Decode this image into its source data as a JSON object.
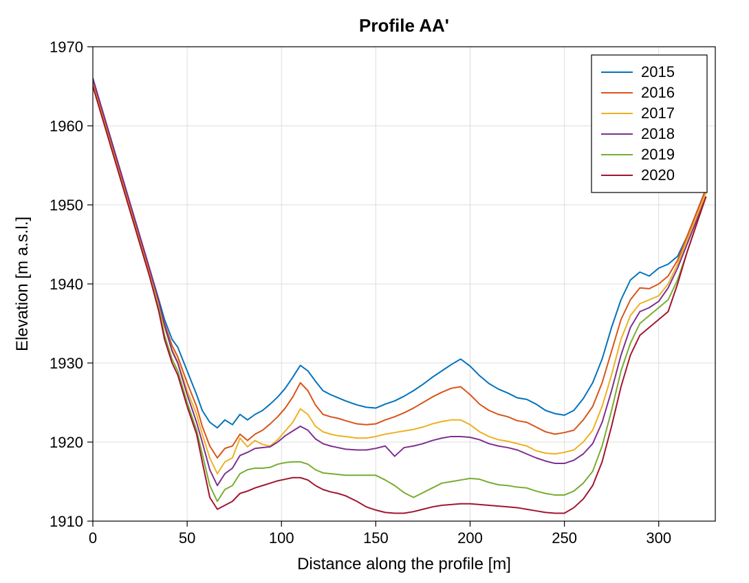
{
  "chart": {
    "type": "line",
    "title": "Profile AA'",
    "title_fontsize": 26,
    "xlabel": "Distance along the profile [m]",
    "ylabel": "Elevation [m a.s.l.]",
    "label_fontsize": 24,
    "tick_fontsize": 22,
    "legend_fontsize": 22,
    "background_color": "#ffffff",
    "plot_border_color": "#000000",
    "plot_border_width": 1.2,
    "grid_color": "#dcdcdc",
    "grid_width": 1,
    "line_width": 2,
    "xlim": [
      0,
      330
    ],
    "ylim": [
      1910,
      1970
    ],
    "xticks": [
      0,
      50,
      100,
      150,
      200,
      250,
      300
    ],
    "yticks": [
      1910,
      1920,
      1930,
      1940,
      1950,
      1960,
      1970
    ],
    "legend_position": "top-right",
    "legend_border_color": "#000000",
    "legend_bg_color": "#ffffff",
    "series": [
      {
        "name": "2015",
        "color": "#0072bd",
        "x": [
          0,
          5,
          10,
          15,
          20,
          25,
          30,
          35,
          38,
          42,
          45,
          50,
          55,
          58,
          62,
          66,
          70,
          74,
          78,
          82,
          86,
          90,
          94,
          98,
          102,
          106,
          110,
          114,
          118,
          122,
          126,
          130,
          134,
          140,
          145,
          150,
          155,
          160,
          165,
          170,
          175,
          180,
          185,
          190,
          195,
          200,
          205,
          210,
          215,
          220,
          225,
          230,
          235,
          240,
          245,
          250,
          255,
          260,
          265,
          270,
          275,
          280,
          285,
          290,
          295,
          300,
          305,
          310,
          315,
          320,
          325
        ],
        "y": [
          1966,
          1962,
          1958,
          1954,
          1950,
          1946,
          1942,
          1938,
          1935.5,
          1933,
          1932,
          1929,
          1926,
          1924,
          1922.5,
          1921.8,
          1922.8,
          1922.2,
          1923.5,
          1922.8,
          1923.5,
          1924,
          1924.8,
          1925.7,
          1926.8,
          1928.2,
          1929.7,
          1929,
          1927.7,
          1926.5,
          1926,
          1925.6,
          1925.2,
          1924.7,
          1924.4,
          1924.3,
          1924.8,
          1925.2,
          1925.8,
          1926.5,
          1927.3,
          1928.2,
          1929,
          1929.8,
          1930.5,
          1929.6,
          1928.4,
          1927.4,
          1926.7,
          1926.2,
          1925.6,
          1925.4,
          1924.8,
          1924.0,
          1923.6,
          1923.4,
          1924.0,
          1925.5,
          1927.5,
          1930.5,
          1934.5,
          1938.0,
          1940.5,
          1941.5,
          1941,
          1942,
          1942.5,
          1943.5,
          1946,
          1949,
          1952
        ]
      },
      {
        "name": "2016",
        "color": "#d95319",
        "x": [
          0,
          5,
          10,
          15,
          20,
          25,
          30,
          35,
          38,
          42,
          45,
          50,
          55,
          58,
          62,
          66,
          70,
          74,
          78,
          82,
          86,
          90,
          94,
          98,
          102,
          106,
          110,
          114,
          118,
          122,
          126,
          130,
          134,
          140,
          145,
          150,
          155,
          160,
          165,
          170,
          175,
          180,
          185,
          190,
          195,
          200,
          205,
          210,
          215,
          220,
          225,
          230,
          235,
          240,
          245,
          250,
          255,
          260,
          265,
          270,
          275,
          280,
          285,
          290,
          295,
          300,
          305,
          310,
          315,
          320,
          325
        ],
        "y": [
          1965.5,
          1961.5,
          1957.5,
          1953.5,
          1949.5,
          1945.5,
          1941.5,
          1937.5,
          1935,
          1932.2,
          1930.8,
          1927.5,
          1924.5,
          1922,
          1919.5,
          1918,
          1919.2,
          1919.5,
          1921,
          1920.2,
          1921,
          1921.5,
          1922.3,
          1923.2,
          1924.3,
          1925.7,
          1927.5,
          1926.5,
          1924.7,
          1923.5,
          1923.2,
          1923,
          1922.7,
          1922.3,
          1922.2,
          1922.3,
          1922.8,
          1923.2,
          1923.7,
          1924.3,
          1925,
          1925.7,
          1926.3,
          1926.8,
          1927,
          1926,
          1924.8,
          1924,
          1923.5,
          1923.2,
          1922.7,
          1922.5,
          1921.9,
          1921.3,
          1921,
          1921.2,
          1921.5,
          1922.8,
          1924.5,
          1927.5,
          1931.5,
          1935.5,
          1938,
          1939.5,
          1939.4,
          1940,
          1941,
          1943,
          1946,
          1949,
          1952
        ]
      },
      {
        "name": "2017",
        "color": "#edb120",
        "x": [
          0,
          5,
          10,
          15,
          20,
          25,
          30,
          35,
          38,
          42,
          45,
          50,
          55,
          58,
          62,
          66,
          70,
          74,
          78,
          82,
          86,
          90,
          94,
          98,
          102,
          106,
          110,
          114,
          118,
          122,
          126,
          130,
          134,
          140,
          145,
          150,
          155,
          160,
          165,
          170,
          175,
          180,
          185,
          190,
          195,
          200,
          205,
          210,
          215,
          220,
          225,
          230,
          235,
          240,
          245,
          250,
          255,
          260,
          265,
          270,
          275,
          280,
          285,
          290,
          295,
          300,
          305,
          310,
          315,
          320,
          325
        ],
        "y": [
          1965.2,
          1961.2,
          1957.2,
          1953.2,
          1949.2,
          1945.2,
          1941.2,
          1937.2,
          1934.5,
          1931.7,
          1930.2,
          1926.5,
          1923.5,
          1921,
          1918,
          1916,
          1917.5,
          1918,
          1920.5,
          1919.4,
          1920.2,
          1919.7,
          1919.5,
          1920.3,
          1921.4,
          1922.5,
          1924.2,
          1923.5,
          1922,
          1921.3,
          1921,
          1920.8,
          1920.7,
          1920.5,
          1920.5,
          1920.7,
          1921,
          1921.2,
          1921.4,
          1921.6,
          1921.9,
          1922.3,
          1922.6,
          1922.8,
          1922.8,
          1922.2,
          1921.3,
          1920.7,
          1920.3,
          1920.1,
          1919.8,
          1919.5,
          1918.9,
          1918.6,
          1918.5,
          1918.7,
          1919,
          1920,
          1921.5,
          1924.5,
          1928.5,
          1933,
          1936,
          1937.5,
          1938,
          1938.5,
          1940,
          1942.5,
          1945.5,
          1948.5,
          1951.5
        ]
      },
      {
        "name": "2018",
        "color": "#7e2f8e",
        "x": [
          0,
          5,
          10,
          15,
          20,
          25,
          30,
          35,
          38,
          42,
          45,
          50,
          55,
          58,
          62,
          66,
          70,
          74,
          78,
          82,
          86,
          90,
          94,
          98,
          102,
          106,
          110,
          114,
          118,
          122,
          126,
          130,
          134,
          140,
          145,
          150,
          155,
          160,
          165,
          170,
          175,
          180,
          185,
          190,
          195,
          200,
          205,
          210,
          215,
          220,
          225,
          230,
          235,
          240,
          245,
          250,
          255,
          260,
          265,
          270,
          275,
          280,
          285,
          290,
          295,
          300,
          305,
          310,
          315,
          320,
          325
        ],
        "y": [
          1966,
          1962,
          1958,
          1954,
          1950,
          1946,
          1942,
          1937.8,
          1934.8,
          1931.5,
          1930,
          1926,
          1922.5,
          1920,
          1916.5,
          1914.5,
          1916,
          1916.7,
          1918.3,
          1918.7,
          1919.2,
          1919.3,
          1919.4,
          1920,
          1920.8,
          1921.4,
          1922,
          1921.5,
          1920.4,
          1919.8,
          1919.5,
          1919.3,
          1919.1,
          1919,
          1919,
          1919.2,
          1919.5,
          1918.2,
          1919.3,
          1919.5,
          1919.8,
          1920.2,
          1920.5,
          1920.7,
          1920.7,
          1920.6,
          1920.3,
          1919.8,
          1919.5,
          1919.3,
          1919,
          1918.5,
          1918.0,
          1917.6,
          1917.3,
          1917.3,
          1917.7,
          1918.5,
          1919.8,
          1922.5,
          1926.5,
          1931,
          1934.5,
          1936.5,
          1937,
          1937.8,
          1939.5,
          1942,
          1945,
          1948,
          1951
        ]
      },
      {
        "name": "2019",
        "color": "#77ac30",
        "x": [
          0,
          5,
          10,
          15,
          20,
          25,
          30,
          35,
          38,
          42,
          45,
          50,
          55,
          58,
          62,
          66,
          70,
          74,
          78,
          82,
          86,
          90,
          94,
          98,
          102,
          106,
          110,
          114,
          118,
          122,
          126,
          130,
          134,
          140,
          145,
          150,
          155,
          160,
          165,
          170,
          175,
          180,
          185,
          190,
          195,
          200,
          205,
          210,
          215,
          220,
          225,
          230,
          235,
          240,
          245,
          250,
          255,
          260,
          265,
          270,
          275,
          280,
          285,
          290,
          295,
          300,
          305,
          310,
          315,
          320,
          325
        ],
        "y": [
          1965,
          1961,
          1957,
          1953,
          1949,
          1945,
          1941,
          1936.8,
          1933.5,
          1930.5,
          1929,
          1925,
          1921.5,
          1918.5,
          1914.5,
          1912.5,
          1914,
          1914.5,
          1916,
          1916.5,
          1916.7,
          1916.7,
          1916.8,
          1917.2,
          1917.4,
          1917.5,
          1917.5,
          1917.2,
          1916.5,
          1916.1,
          1916,
          1915.9,
          1915.8,
          1915.8,
          1915.8,
          1915.8,
          1915.2,
          1914.5,
          1913.6,
          1913.0,
          1913.6,
          1914.2,
          1914.8,
          1915,
          1915.2,
          1915.4,
          1915.3,
          1914.9,
          1914.6,
          1914.5,
          1914.3,
          1914.2,
          1913.8,
          1913.5,
          1913.3,
          1913.3,
          1913.8,
          1914.8,
          1916.3,
          1919.5,
          1924,
          1929,
          1932.5,
          1935,
          1936,
          1937,
          1938,
          1940.5,
          1944,
          1947.5,
          1951
        ]
      },
      {
        "name": "2020",
        "color": "#a2142f",
        "x": [
          0,
          5,
          10,
          15,
          20,
          25,
          30,
          35,
          38,
          42,
          45,
          50,
          55,
          58,
          62,
          66,
          70,
          74,
          78,
          82,
          86,
          90,
          94,
          98,
          102,
          106,
          110,
          114,
          118,
          122,
          126,
          130,
          134,
          140,
          145,
          150,
          155,
          160,
          165,
          170,
          175,
          180,
          185,
          190,
          195,
          200,
          205,
          210,
          215,
          220,
          225,
          230,
          235,
          240,
          245,
          250,
          255,
          260,
          265,
          270,
          275,
          280,
          285,
          290,
          295,
          300,
          305,
          310,
          315,
          320,
          325
        ],
        "y": [
          1965,
          1961,
          1957,
          1953,
          1949,
          1945,
          1941,
          1936.5,
          1933,
          1930,
          1928.5,
          1924.5,
          1921,
          1917.5,
          1913,
          1911.5,
          1912.0,
          1912.5,
          1913.5,
          1913.8,
          1914.2,
          1914.5,
          1914.8,
          1915.1,
          1915.3,
          1915.5,
          1915.5,
          1915.2,
          1914.5,
          1914,
          1913.7,
          1913.5,
          1913.2,
          1912.5,
          1911.8,
          1911.4,
          1911.1,
          1911.0,
          1911.0,
          1911.2,
          1911.5,
          1911.8,
          1912.0,
          1912.1,
          1912.2,
          1912.2,
          1912.1,
          1912.0,
          1911.9,
          1911.8,
          1911.7,
          1911.5,
          1911.3,
          1911.1,
          1911.0,
          1911.0,
          1911.7,
          1912.8,
          1914.5,
          1917.5,
          1922,
          1927,
          1931,
          1933.5,
          1934.5,
          1935.5,
          1936.5,
          1940,
          1944,
          1947.5,
          1951
        ]
      }
    ]
  }
}
